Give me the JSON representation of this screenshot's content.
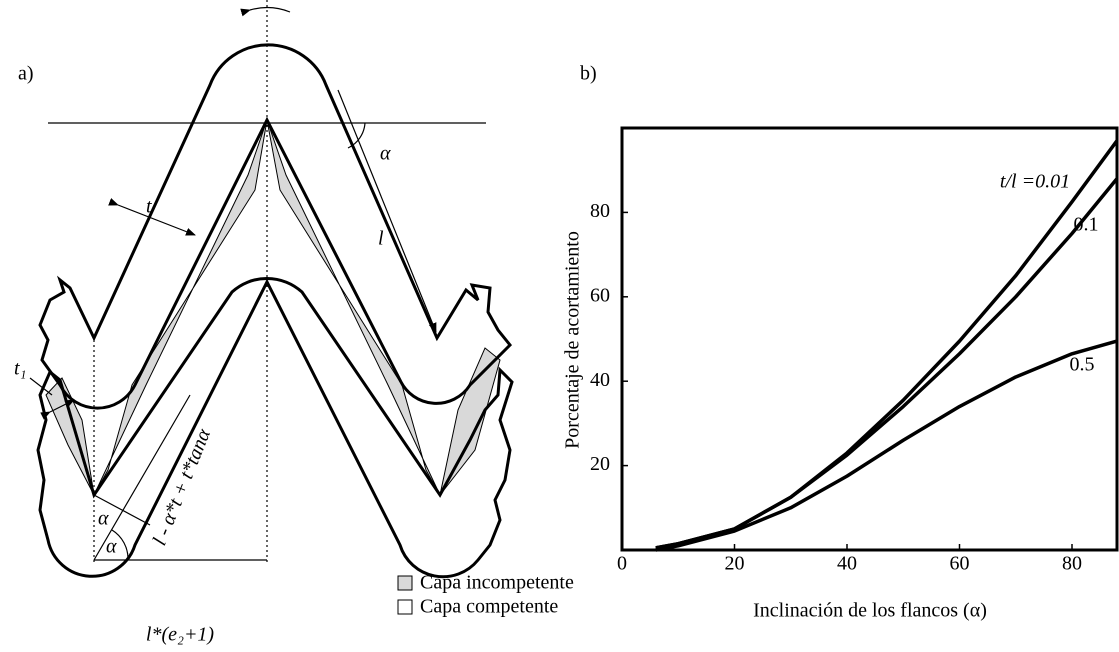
{
  "panel_a": {
    "label": "a)",
    "alpha_top": "α",
    "l": "l",
    "t": "t",
    "t1": "t₁",
    "flank_length": "l - α*t + t*tanα",
    "alpha_hinge": "α",
    "alpha_triangle": "α",
    "base_length": "l*(e₂+1)"
  },
  "legend": {
    "incompetent": "Capa incompetente",
    "competent": "Capa competente"
  },
  "chart_data": {
    "type": "line",
    "panel_label": "b)",
    "x_label": "Inclinación de los flancos (α)",
    "y_label": "Porcentaje de acortamiento",
    "x": [
      6,
      10,
      20,
      30,
      40,
      50,
      60,
      70,
      80,
      88
    ],
    "series": [
      {
        "name": "t/l =0.01",
        "color": "#000000",
        "values": [
          0.5,
          1.5,
          5,
          12.5,
          23,
          35.5,
          49.5,
          65,
          82.5,
          97
        ]
      },
      {
        "name": "0.1",
        "color": "#000000",
        "values": [
          0.5,
          1.5,
          5,
          12.5,
          22.5,
          34,
          46.5,
          60,
          75,
          88
        ]
      },
      {
        "name": "0.5",
        "color": "#000000",
        "values": [
          0,
          1,
          4.5,
          10,
          17.5,
          26,
          34,
          41,
          46.5,
          49.5
        ]
      }
    ],
    "xlim": [
      0,
      88
    ],
    "ylim": [
      0,
      100
    ],
    "xticks": [
      0,
      20,
      40,
      60,
      80
    ],
    "yticks": [
      20,
      40,
      60,
      80
    ],
    "grid": false
  }
}
